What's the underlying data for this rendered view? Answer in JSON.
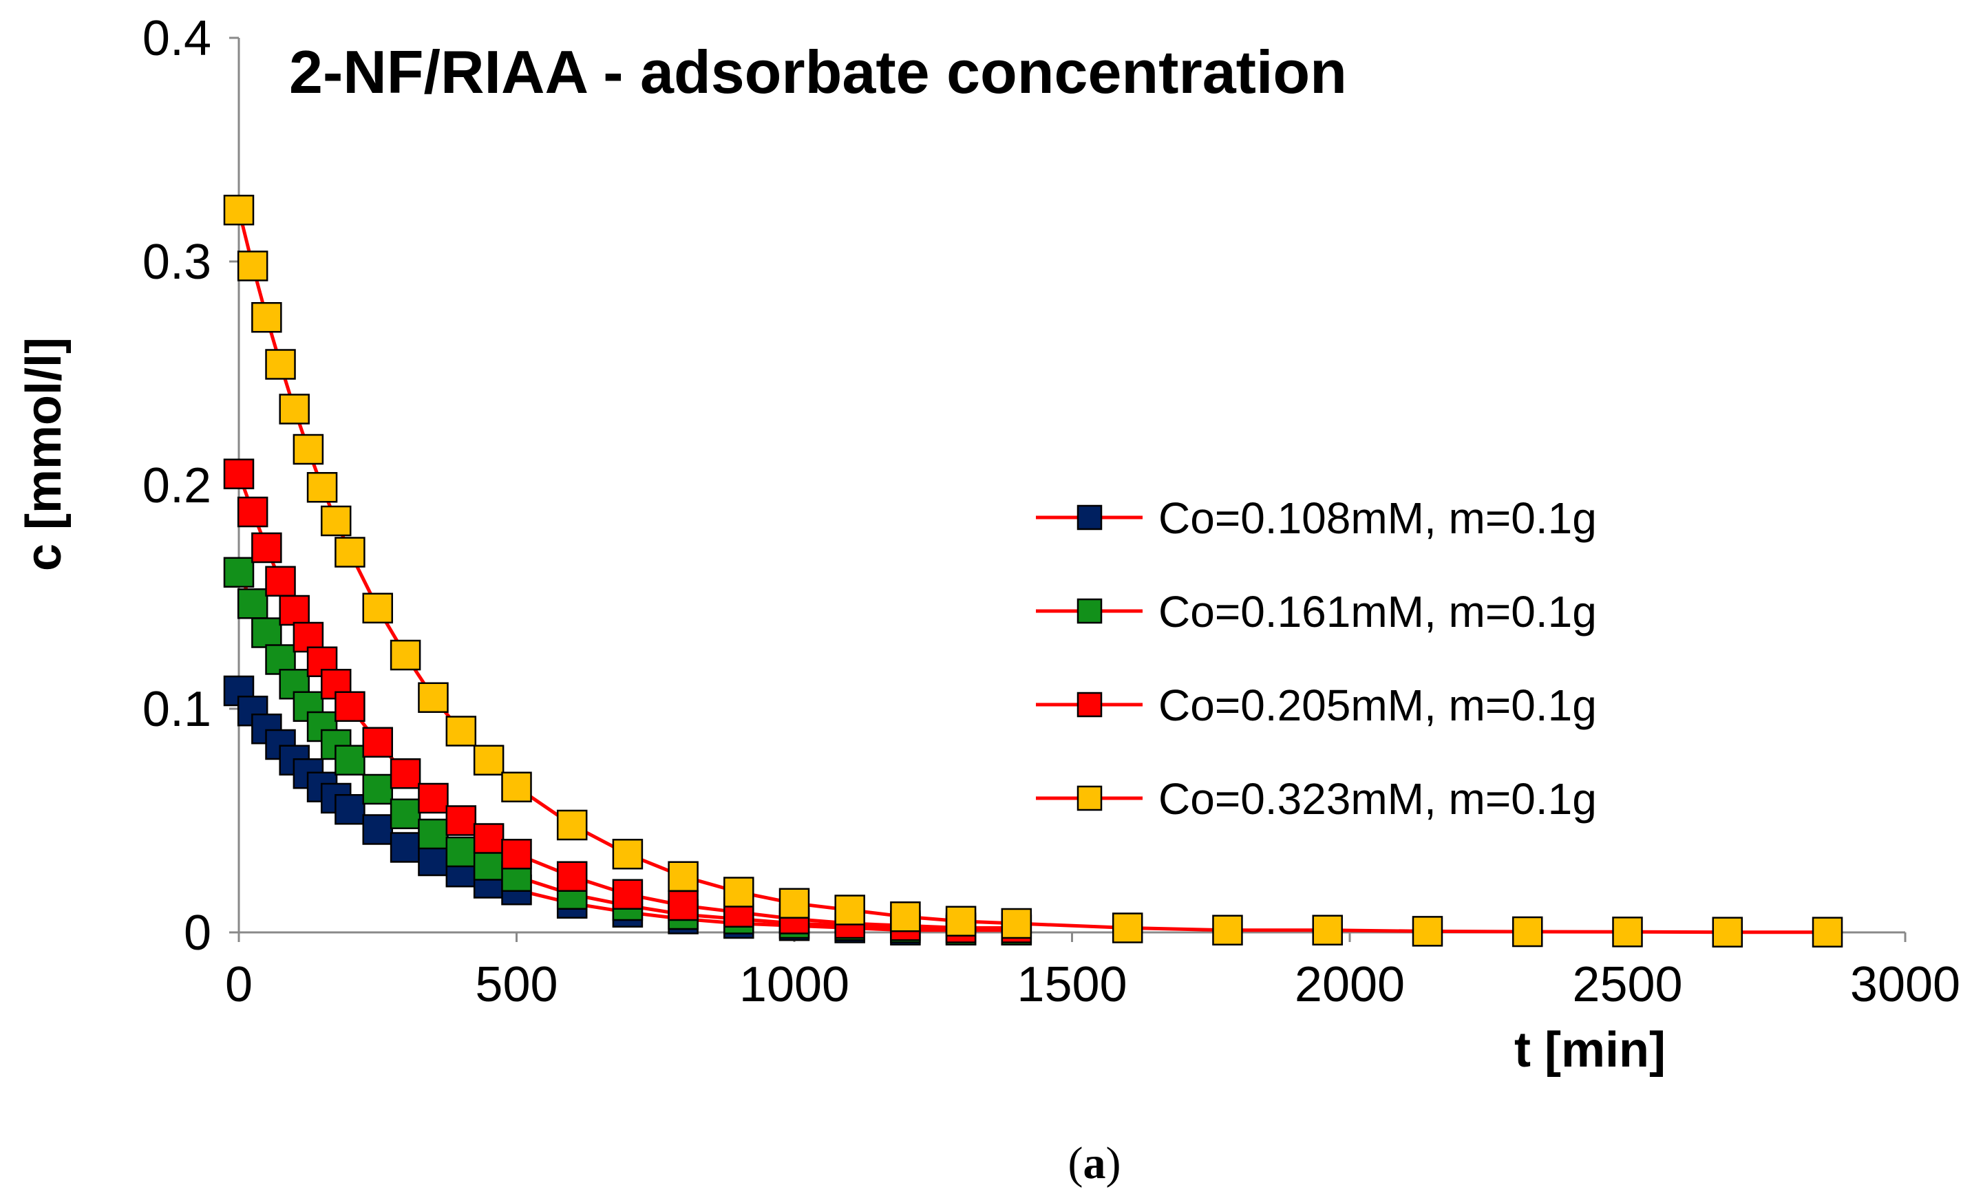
{
  "chart_data": {
    "type": "scatter",
    "title": "2-NF/RIAA - adsorbate concentration",
    "xlabel": "t [min]",
    "ylabel": "c [mmol/l]",
    "xlim": [
      0,
      3000
    ],
    "ylim": [
      0,
      0.4
    ],
    "x_ticks": [
      "0",
      "500",
      "1000",
      "1500",
      "2000",
      "2500",
      "3000"
    ],
    "y_ticks": [
      "0",
      "0.1",
      "0.2",
      "0.3",
      "0.4"
    ],
    "grid": false,
    "legend_position": "right",
    "line_color": "#ff0000",
    "series": [
      {
        "name": "Co=0.108mM, m=0.1g",
        "color": "#002060",
        "x": [
          0,
          25,
          50,
          75,
          100,
          125,
          150,
          175,
          200,
          250,
          300,
          350,
          400,
          450,
          500,
          600,
          700,
          800,
          900,
          1000,
          1100,
          1200,
          1300,
          1400
        ],
        "y": [
          0.108,
          0.099,
          0.091,
          0.084,
          0.077,
          0.071,
          0.065,
          0.06,
          0.055,
          0.046,
          0.038,
          0.032,
          0.027,
          0.022,
          0.019,
          0.013,
          0.009,
          0.006,
          0.004,
          0.003,
          0.002,
          0.001,
          0.001,
          0.001
        ]
      },
      {
        "name": "Co=0.161mM, m=0.1g",
        "color": "#12901a",
        "x": [
          0,
          25,
          50,
          75,
          100,
          125,
          150,
          175,
          200,
          250,
          300,
          350,
          400,
          450,
          500,
          600,
          700,
          800,
          900,
          1000,
          1100,
          1200,
          1300,
          1400
        ],
        "y": [
          0.161,
          0.147,
          0.134,
          0.122,
          0.111,
          0.101,
          0.092,
          0.084,
          0.077,
          0.064,
          0.053,
          0.044,
          0.036,
          0.03,
          0.025,
          0.017,
          0.012,
          0.008,
          0.006,
          0.004,
          0.003,
          0.002,
          0.001,
          0.001
        ]
      },
      {
        "name": "Co=0.205mM, m=0.1g",
        "color": "#ff0000",
        "x": [
          0,
          25,
          50,
          75,
          100,
          125,
          150,
          175,
          200,
          250,
          300,
          350,
          400,
          450,
          500,
          600,
          700,
          800,
          900,
          1000,
          1100,
          1200,
          1300,
          1400
        ],
        "y": [
          0.205,
          0.188,
          0.172,
          0.157,
          0.144,
          0.132,
          0.121,
          0.111,
          0.101,
          0.085,
          0.071,
          0.06,
          0.05,
          0.042,
          0.035,
          0.025,
          0.017,
          0.012,
          0.009,
          0.006,
          0.004,
          0.003,
          0.002,
          0.002
        ]
      },
      {
        "name": "Co=0.323mM, m=0.1g",
        "color": "#ffc000",
        "x": [
          0,
          25,
          50,
          75,
          100,
          125,
          150,
          175,
          200,
          250,
          300,
          350,
          400,
          450,
          500,
          600,
          700,
          800,
          900,
          1000,
          1100,
          1200,
          1300,
          1400,
          1600,
          1780,
          1960,
          2140,
          2320,
          2500,
          2680,
          2860
        ],
        "y": [
          0.323,
          0.298,
          0.275,
          0.254,
          0.234,
          0.216,
          0.199,
          0.184,
          0.17,
          0.145,
          0.124,
          0.105,
          0.09,
          0.077,
          0.065,
          0.048,
          0.035,
          0.025,
          0.018,
          0.013,
          0.01,
          0.007,
          0.005,
          0.004,
          0.002,
          0.001,
          0.001,
          0.0005,
          0.0003,
          0.0002,
          0.0001,
          0.0001
        ]
      }
    ]
  },
  "caption": {
    "open": "(",
    "letter": "a",
    "close": ")"
  }
}
